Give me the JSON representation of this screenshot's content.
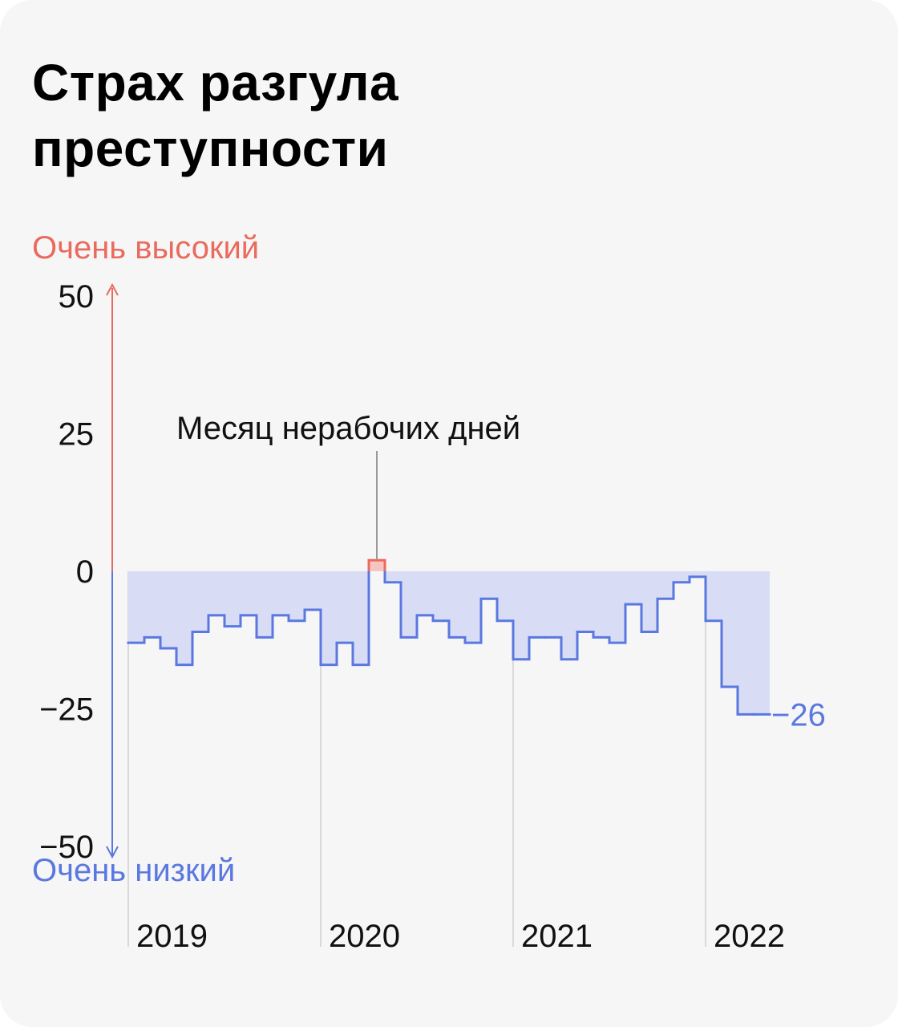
{
  "title_line1": "Страх разгула",
  "title_line2": "преступности",
  "legend_high": "Очень высокий",
  "legend_low": "Очень низкий",
  "colors": {
    "negative": "#5a78e0",
    "negative_fill": "#d8ddf5",
    "positive": "#ea6b5e",
    "positive_fill": "#f6c5bf",
    "annotation_line": "#999999",
    "gridline": "#d9d9d9"
  },
  "chart_data": {
    "type": "area",
    "step": true,
    "ylim": [
      -50,
      50
    ],
    "yticks": [
      50,
      25,
      0,
      -25,
      -50
    ],
    "ytick_labels": [
      "50",
      "25",
      "0",
      "−25",
      "−50"
    ],
    "xlabels": [
      "2019",
      "2020",
      "2021",
      "2022"
    ],
    "x": [
      "2019-01",
      "2019-02",
      "2019-03",
      "2019-04",
      "2019-05",
      "2019-06",
      "2019-07",
      "2019-08",
      "2019-09",
      "2019-10",
      "2019-11",
      "2019-12",
      "2020-01",
      "2020-02",
      "2020-03",
      "2020-04",
      "2020-05",
      "2020-06",
      "2020-07",
      "2020-08",
      "2020-09",
      "2020-10",
      "2020-11",
      "2020-12",
      "2021-01",
      "2021-02",
      "2021-03",
      "2021-04",
      "2021-05",
      "2021-06",
      "2021-07",
      "2021-08",
      "2021-09",
      "2021-10",
      "2021-11",
      "2021-12",
      "2022-01",
      "2022-02",
      "2022-03",
      "2022-04"
    ],
    "values": [
      -13,
      -12,
      -14,
      -17,
      -11,
      -8,
      -10,
      -8,
      -12,
      -8,
      -9,
      -7,
      -17,
      -13,
      -17,
      2,
      -2,
      -12,
      -8,
      -9,
      -12,
      -13,
      -5,
      -9,
      -16,
      -12,
      -12,
      -16,
      -11,
      -12,
      -13,
      -6,
      -11,
      -5,
      -2,
      -1,
      -9,
      -21,
      -26,
      -26
    ],
    "annotation": {
      "text": "Месяц нерабочих дней",
      "x": "2020-04"
    },
    "end_label": "−26"
  }
}
